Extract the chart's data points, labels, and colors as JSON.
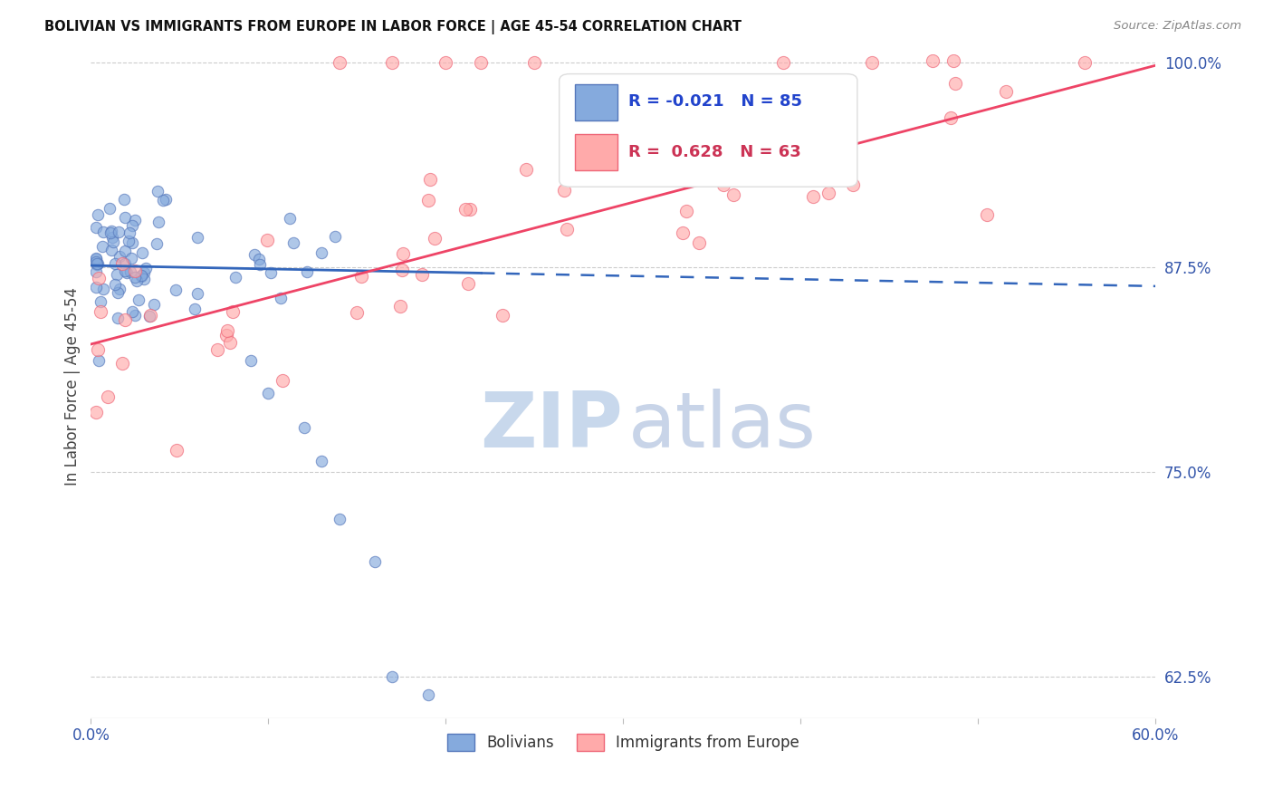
{
  "title": "BOLIVIAN VS IMMIGRANTS FROM EUROPE IN LABOR FORCE | AGE 45-54 CORRELATION CHART",
  "source": "Source: ZipAtlas.com",
  "ylabel": "In Labor Force | Age 45-54",
  "xmin": 0.0,
  "xmax": 0.6,
  "ymin": 0.6,
  "ymax": 1.005,
  "yticks_right": [
    0.625,
    0.75,
    0.875,
    1.0
  ],
  "ytick_labels_right": [
    "62.5%",
    "75.0%",
    "87.5%",
    "100.0%"
  ],
  "bolivians_color": "#85AADD",
  "europe_color": "#FFAAAA",
  "bolivians_edge": "#5577BB",
  "europe_edge": "#EE6677",
  "trend_blue_color": "#3366BB",
  "trend_pink_color": "#EE4466",
  "R_blue": -0.021,
  "N_blue": 85,
  "R_pink": 0.628,
  "N_pink": 63,
  "watermark_zip": "ZIP",
  "watermark_atlas": "atlas",
  "legend_label_blue": "Bolivians",
  "legend_label_pink": "Immigrants from Europe",
  "dot_size": 80
}
